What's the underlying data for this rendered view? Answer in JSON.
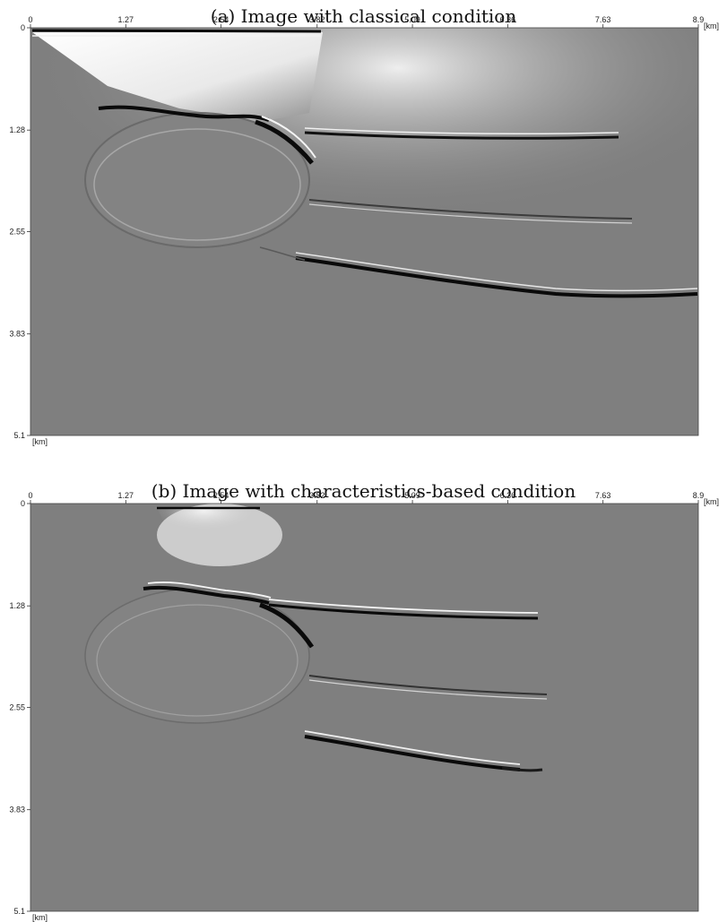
{
  "figure": {
    "panels": [
      {
        "title": "(a) Image with classical condition",
        "x_unit": "[km]",
        "y_unit": "[km]",
        "x_ticks": [
          "0",
          "1.27",
          "2.54",
          "3.82",
          "5.09",
          "6.36",
          "7.63",
          "8.9"
        ],
        "y_ticks": [
          "0",
          "1.28",
          "2.55",
          "3.83",
          "5.1"
        ],
        "x_range": [
          0,
          8.9
        ],
        "y_range": [
          0,
          5.1
        ]
      },
      {
        "title": "(b) Image with characteristics-based condition",
        "x_unit": "[km]",
        "y_unit": "[km]",
        "x_ticks": [
          "0",
          "1.27",
          "2.54",
          "3.82",
          "5.09",
          "6.36",
          "7.63",
          "8.9"
        ],
        "y_ticks": [
          "0",
          "1.28",
          "2.55",
          "3.83",
          "5.1"
        ],
        "x_range": [
          0,
          8.9
        ],
        "y_range": [
          0,
          5.1
        ]
      }
    ]
  },
  "colors": {
    "background_gray": "#7f7f7f",
    "reflector_dark": "#0a0a0a",
    "reflector_light": "#f4f4f4"
  }
}
